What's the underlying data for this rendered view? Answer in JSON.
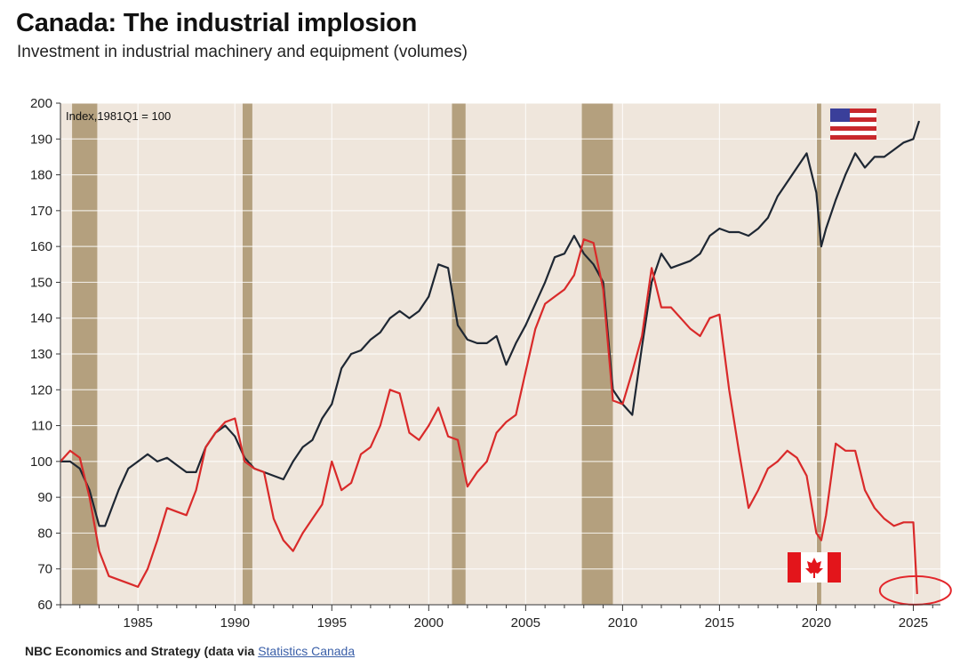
{
  "header": {
    "title": "Canada: The industrial implosion",
    "subtitle": "Investment in industrial machinery and equipment (volumes)"
  },
  "footer": {
    "source_prefix": "NBC Economics and Strategy (data via ",
    "source_link": "Statistics Canada"
  },
  "chart_data": {
    "type": "line",
    "title": "",
    "annotation": "Index,1981Q1 = 100",
    "xlabel": "",
    "ylabel": "",
    "xlim": [
      1981.0,
      2026.4
    ],
    "ylim": [
      60,
      200
    ],
    "yticks": [
      60,
      70,
      80,
      90,
      100,
      110,
      120,
      130,
      140,
      150,
      160,
      170,
      180,
      190,
      200
    ],
    "xticks": [
      1985,
      1990,
      1995,
      2000,
      2005,
      2010,
      2015,
      2020,
      2025
    ],
    "grid": true,
    "recessions": [
      [
        1981.6,
        1982.9
      ],
      [
        1990.4,
        1990.9
      ],
      [
        2001.2,
        2001.9
      ],
      [
        2007.9,
        2009.5
      ],
      [
        2020.0,
        2020.25
      ]
    ],
    "colors": {
      "plot_background": "#efe6dc",
      "recession": "#b4a07e",
      "usa": "#1e2733",
      "canada": "#d92a2a"
    },
    "series": [
      {
        "key": "usa",
        "color": "#1e2733",
        "x": [
          1981.0,
          1981.5,
          1982.0,
          1982.5,
          1983.0,
          1983.3,
          1984.0,
          1984.5,
          1985.0,
          1985.5,
          1986.0,
          1986.5,
          1987.0,
          1987.5,
          1988.0,
          1988.5,
          1989.0,
          1989.5,
          1990.0,
          1990.5,
          1991.0,
          1991.5,
          1992.0,
          1992.5,
          1993.0,
          1993.5,
          1994.0,
          1994.5,
          1995.0,
          1995.5,
          1996.0,
          1996.5,
          1997.0,
          1997.5,
          1998.0,
          1998.5,
          1999.0,
          1999.5,
          2000.0,
          2000.5,
          2001.0,
          2001.5,
          2002.0,
          2002.5,
          2003.0,
          2003.5,
          2004.0,
          2004.5,
          2005.0,
          2005.5,
          2006.0,
          2006.5,
          2007.0,
          2007.5,
          2008.0,
          2008.5,
          2009.0,
          2009.5,
          2010.0,
          2010.5,
          2011.0,
          2011.5,
          2012.0,
          2012.5,
          2013.0,
          2013.5,
          2014.0,
          2014.5,
          2015.0,
          2015.5,
          2016.0,
          2016.5,
          2017.0,
          2017.5,
          2018.0,
          2018.5,
          2019.0,
          2019.5,
          2020.0,
          2020.25,
          2020.5,
          2021.0,
          2021.5,
          2022.0,
          2022.5,
          2023.0,
          2023.5,
          2024.0,
          2024.5,
          2025.0,
          2025.3
        ],
        "values": [
          100,
          100,
          98,
          92,
          82,
          82,
          92,
          98,
          100,
          102,
          100,
          101,
          99,
          97,
          97,
          104,
          108,
          110,
          107,
          101,
          98,
          97,
          96,
          95,
          100,
          104,
          106,
          112,
          116,
          126,
          130,
          131,
          134,
          136,
          140,
          142,
          140,
          142,
          146,
          155,
          154,
          138,
          134,
          133,
          133,
          135,
          127,
          133,
          138,
          144,
          150,
          157,
          158,
          163,
          158,
          155,
          150,
          120,
          116,
          113,
          132,
          150,
          158,
          154,
          155,
          156,
          158,
          163,
          165,
          164,
          164,
          163,
          165,
          168,
          174,
          178,
          182,
          186,
          175,
          160,
          165,
          173,
          180,
          186,
          182,
          185,
          185,
          187,
          189,
          190,
          195
        ]
      },
      {
        "key": "canada",
        "color": "#d92a2a",
        "x": [
          1981.0,
          1981.5,
          1982.0,
          1982.5,
          1983.0,
          1983.5,
          1984.0,
          1984.5,
          1985.0,
          1985.5,
          1986.0,
          1986.5,
          1987.0,
          1987.5,
          1988.0,
          1988.5,
          1989.0,
          1989.5,
          1990.0,
          1990.5,
          1991.0,
          1991.5,
          1992.0,
          1992.5,
          1993.0,
          1993.5,
          1994.0,
          1994.5,
          1995.0,
          1995.5,
          1996.0,
          1996.5,
          1997.0,
          1997.5,
          1998.0,
          1998.5,
          1999.0,
          1999.5,
          2000.0,
          2000.5,
          2001.0,
          2001.5,
          2002.0,
          2002.5,
          2003.0,
          2003.5,
          2004.0,
          2004.5,
          2005.0,
          2005.5,
          2006.0,
          2006.5,
          2007.0,
          2007.5,
          2008.0,
          2008.5,
          2009.0,
          2009.5,
          2010.0,
          2010.5,
          2011.0,
          2011.5,
          2012.0,
          2012.5,
          2013.0,
          2013.5,
          2014.0,
          2014.5,
          2015.0,
          2015.5,
          2016.0,
          2016.5,
          2017.0,
          2017.5,
          2018.0,
          2018.5,
          2019.0,
          2019.5,
          2020.0,
          2020.25,
          2020.5,
          2021.0,
          2021.5,
          2022.0,
          2022.5,
          2023.0,
          2023.5,
          2024.0,
          2024.5,
          2025.0,
          2025.2
        ],
        "values": [
          100,
          103,
          101,
          90,
          75,
          68,
          67,
          66,
          65,
          70,
          78,
          87,
          86,
          85,
          92,
          104,
          108,
          111,
          112,
          100,
          98,
          97,
          84,
          78,
          75,
          80,
          84,
          88,
          100,
          92,
          94,
          102,
          104,
          110,
          120,
          119,
          108,
          106,
          110,
          115,
          107,
          106,
          93,
          97,
          100,
          108,
          111,
          113,
          125,
          137,
          144,
          146,
          148,
          152,
          162,
          161,
          148,
          117,
          116,
          125,
          135,
          154,
          143,
          143,
          140,
          137,
          135,
          140,
          141,
          120,
          103,
          87,
          92,
          98,
          100,
          103,
          101,
          96,
          80,
          78,
          85,
          105,
          103,
          103,
          92,
          87,
          84,
          82,
          83,
          83,
          63
        ]
      }
    ]
  }
}
